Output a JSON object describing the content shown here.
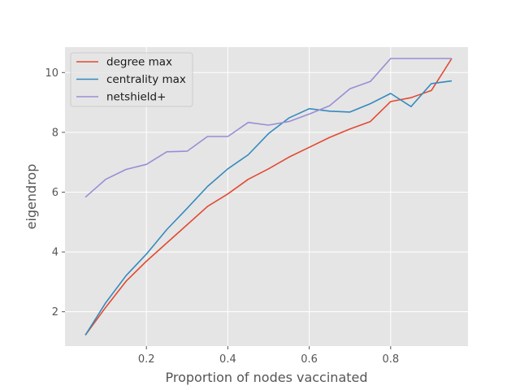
{
  "chart_data": {
    "type": "line",
    "title": "",
    "xlabel": "Proportion of nodes vaccinated",
    "ylabel": "eigendrop",
    "xlim": [
      0.0,
      0.99
    ],
    "ylim": [
      0.85,
      10.85
    ],
    "xticks": [
      0.2,
      0.4,
      0.6,
      0.8
    ],
    "xtick_labels": [
      "0.2",
      "0.4",
      "0.6",
      "0.8"
    ],
    "yticks": [
      2,
      4,
      6,
      8,
      10
    ],
    "ytick_labels": [
      "2",
      "4",
      "6",
      "8",
      "10"
    ],
    "grid": true,
    "legend_position": "upper-left",
    "x": [
      0.05,
      0.1,
      0.15,
      0.2,
      0.25,
      0.3,
      0.35,
      0.4,
      0.45,
      0.5,
      0.55,
      0.6,
      0.65,
      0.7,
      0.75,
      0.8,
      0.85,
      0.9,
      0.95
    ],
    "series": [
      {
        "name": "degree max",
        "color": "#E24A33",
        "values": [
          1.22,
          2.15,
          3.02,
          3.69,
          4.3,
          4.91,
          5.52,
          5.94,
          6.43,
          6.78,
          7.17,
          7.5,
          7.83,
          8.11,
          8.36,
          9.03,
          9.16,
          9.4,
          10.47
        ]
      },
      {
        "name": "centrality max",
        "color": "#348ABD",
        "values": [
          1.22,
          2.3,
          3.21,
          3.93,
          4.75,
          5.46,
          6.19,
          6.78,
          7.25,
          7.96,
          8.48,
          8.79,
          8.71,
          8.68,
          8.96,
          9.3,
          8.86,
          9.63,
          9.72
        ]
      },
      {
        "name": "netshield+",
        "color": "#988ED5",
        "values": [
          5.83,
          6.43,
          6.76,
          6.93,
          7.35,
          7.37,
          7.86,
          7.86,
          8.33,
          8.24,
          8.36,
          8.61,
          8.89,
          9.46,
          9.7,
          10.47,
          10.47,
          10.47,
          10.47
        ]
      }
    ]
  }
}
